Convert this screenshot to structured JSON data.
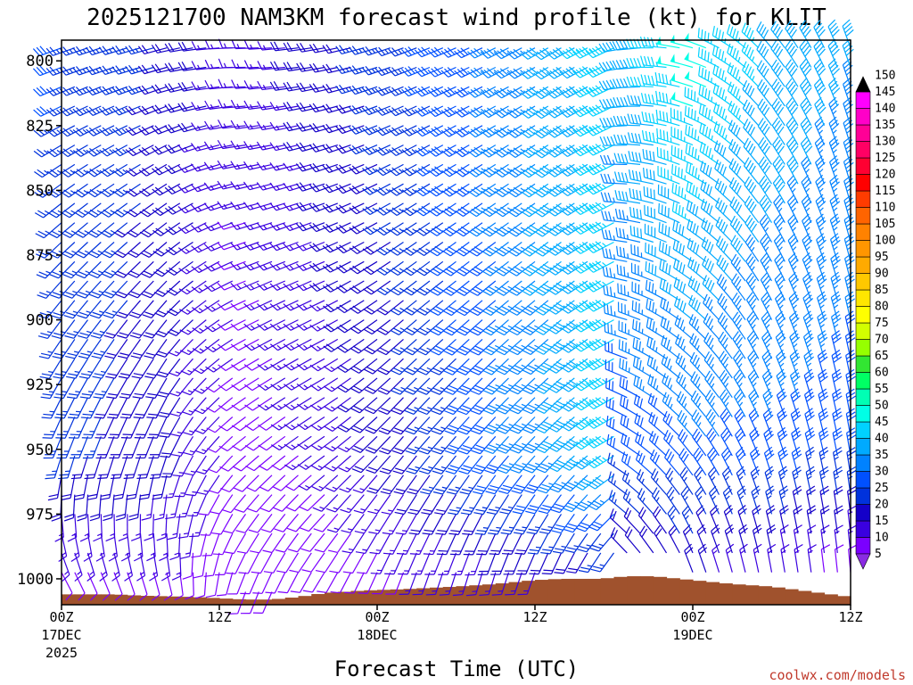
{
  "chart_data": {
    "type": "wind-barb-profile",
    "title": "2025121700 NAM3KM forecast wind profile (kt) for KLIT",
    "xlabel": "Forecast Time (UTC)",
    "ylabel": "",
    "source_label": "coolwx.com/models",
    "x_range_hours": [
      0,
      60
    ],
    "y_range_hpa": [
      1010,
      792
    ],
    "y_ticks": [
      {
        "value": 800,
        "label": "800"
      },
      {
        "value": 825,
        "label": "825"
      },
      {
        "value": 850,
        "label": "850"
      },
      {
        "value": 875,
        "label": "875"
      },
      {
        "value": 900,
        "label": "900"
      },
      {
        "value": 925,
        "label": "925"
      },
      {
        "value": 950,
        "label": "950"
      },
      {
        "value": 975,
        "label": "975"
      },
      {
        "value": 1000,
        "label": "1000"
      }
    ],
    "x_ticks": [
      {
        "hour": 0,
        "label": "00Z",
        "date": "17DEC",
        "year": "2025"
      },
      {
        "hour": 12,
        "label": "12Z",
        "date": "",
        "year": ""
      },
      {
        "hour": 24,
        "label": "00Z",
        "date": "18DEC",
        "year": ""
      },
      {
        "hour": 36,
        "label": "12Z",
        "date": "",
        "year": ""
      },
      {
        "hour": 48,
        "label": "00Z",
        "date": "19DEC",
        "year": ""
      },
      {
        "hour": 60,
        "label": "12Z",
        "date": "",
        "year": ""
      }
    ],
    "colorbar": [
      {
        "value": 5,
        "color": "#8a2be2",
        "label": "5"
      },
      {
        "value": 10,
        "color": "#7b00ff",
        "label": "10"
      },
      {
        "value": 15,
        "color": "#3a00e0",
        "label": "15"
      },
      {
        "value": 20,
        "color": "#1400c8",
        "label": "20"
      },
      {
        "value": 25,
        "color": "#0032dc",
        "label": "25"
      },
      {
        "value": 30,
        "color": "#0050ff",
        "label": "30"
      },
      {
        "value": 35,
        "color": "#0082ff",
        "label": "35"
      },
      {
        "value": 40,
        "color": "#00aaff",
        "label": "40"
      },
      {
        "value": 45,
        "color": "#00d2ff",
        "label": "45"
      },
      {
        "value": 50,
        "color": "#00ffe6",
        "label": "50"
      },
      {
        "value": 55,
        "color": "#00ffb4",
        "label": "55"
      },
      {
        "value": 60,
        "color": "#00ff64",
        "label": "60"
      },
      {
        "value": 65,
        "color": "#32e632",
        "label": "65"
      },
      {
        "value": 70,
        "color": "#96ff00",
        "label": "70"
      },
      {
        "value": 75,
        "color": "#d2ff00",
        "label": "75"
      },
      {
        "value": 80,
        "color": "#ffff00",
        "label": "80"
      },
      {
        "value": 85,
        "color": "#ffe600",
        "label": "85"
      },
      {
        "value": 90,
        "color": "#ffc800",
        "label": "90"
      },
      {
        "value": 95,
        "color": "#ffaa00",
        "label": "95"
      },
      {
        "value": 100,
        "color": "#ff9600",
        "label": "100"
      },
      {
        "value": 105,
        "color": "#ff8200",
        "label": "105"
      },
      {
        "value": 110,
        "color": "#ff6400",
        "label": "110"
      },
      {
        "value": 115,
        "color": "#ff3c00",
        "label": "115"
      },
      {
        "value": 120,
        "color": "#ff0000",
        "label": "120"
      },
      {
        "value": 125,
        "color": "#ff0032",
        "label": "125"
      },
      {
        "value": 130,
        "color": "#ff0064",
        "label": "130"
      },
      {
        "value": 135,
        "color": "#ff0096",
        "label": "135"
      },
      {
        "value": 140,
        "color": "#ff00c8",
        "label": "140"
      },
      {
        "value": 145,
        "color": "#ff00ff",
        "label": "145"
      },
      {
        "value": 150,
        "color": "#000000",
        "label": "150"
      }
    ],
    "terrain_color": "#a0522d",
    "surface_pressure_hpa": [
      {
        "hour": 0,
        "value": 1006
      },
      {
        "hour": 4,
        "value": 1006
      },
      {
        "hour": 6,
        "value": 1006.5
      },
      {
        "hour": 10,
        "value": 1007
      },
      {
        "hour": 14,
        "value": 1008
      },
      {
        "hour": 16,
        "value": 1008
      },
      {
        "hour": 18,
        "value": 1007
      },
      {
        "hour": 20,
        "value": 1005.5
      },
      {
        "hour": 23,
        "value": 1004.5
      },
      {
        "hour": 26,
        "value": 1004
      },
      {
        "hour": 30,
        "value": 1003
      },
      {
        "hour": 33,
        "value": 1002
      },
      {
        "hour": 36,
        "value": 1000.5
      },
      {
        "hour": 38,
        "value": 1000
      },
      {
        "hour": 41,
        "value": 1000
      },
      {
        "hour": 43,
        "value": 999
      },
      {
        "hour": 45,
        "value": 999
      },
      {
        "hour": 47,
        "value": 1000
      },
      {
        "hour": 49,
        "value": 1001
      },
      {
        "hour": 51,
        "value": 1002
      },
      {
        "hour": 54,
        "value": 1003
      },
      {
        "hour": 57,
        "value": 1005
      },
      {
        "hour": 60,
        "value": 1007
      }
    ],
    "wind_keyframes": [
      {
        "hour": 0,
        "low_dir": 150,
        "low_spd": 10,
        "mid_dir": 200,
        "mid_spd": 24,
        "up_dir": 250,
        "up_spd": 28
      },
      {
        "hour": 8,
        "low_dir": 165,
        "low_spd": 12,
        "mid_dir": 200,
        "mid_spd": 20,
        "up_dir": 255,
        "up_spd": 22
      },
      {
        "hour": 14,
        "low_dir": 200,
        "low_spd": 8,
        "mid_dir": 230,
        "mid_spd": 10,
        "up_dir": 270,
        "up_spd": 14
      },
      {
        "hour": 20,
        "low_dir": 210,
        "low_spd": 9,
        "mid_dir": 235,
        "mid_spd": 14,
        "up_dir": 260,
        "up_spd": 20
      },
      {
        "hour": 26,
        "low_dir": 200,
        "low_spd": 12,
        "mid_dir": 220,
        "mid_spd": 20,
        "up_dir": 250,
        "up_spd": 26
      },
      {
        "hour": 32,
        "low_dir": 195,
        "low_spd": 14,
        "mid_dir": 220,
        "mid_spd": 30,
        "up_dir": 245,
        "up_spd": 32
      },
      {
        "hour": 38,
        "low_dir": 200,
        "low_spd": 16,
        "mid_dir": 225,
        "mid_spd": 38,
        "up_dir": 240,
        "up_spd": 40
      },
      {
        "hour": 42,
        "low_dir": 210,
        "low_spd": 18,
        "mid_dir": 240,
        "mid_spd": 45,
        "up_dir": 245,
        "up_spd": 45
      },
      {
        "hour": 43,
        "low_dir": 320,
        "low_spd": 16,
        "mid_dir": 300,
        "mid_spd": 30,
        "up_dir": 260,
        "up_spd": 40
      },
      {
        "hour": 48,
        "low_dir": 340,
        "low_spd": 18,
        "mid_dir": 320,
        "mid_spd": 32,
        "up_dir": 285,
        "up_spd": 50
      },
      {
        "hour": 54,
        "low_dir": 350,
        "low_spd": 14,
        "mid_dir": 340,
        "mid_spd": 32,
        "up_dir": 320,
        "up_spd": 42
      },
      {
        "hour": 60,
        "low_dir": 355,
        "low_spd": 10,
        "mid_dir": 350,
        "mid_spd": 30,
        "up_dir": 340,
        "up_spd": 38
      }
    ]
  }
}
